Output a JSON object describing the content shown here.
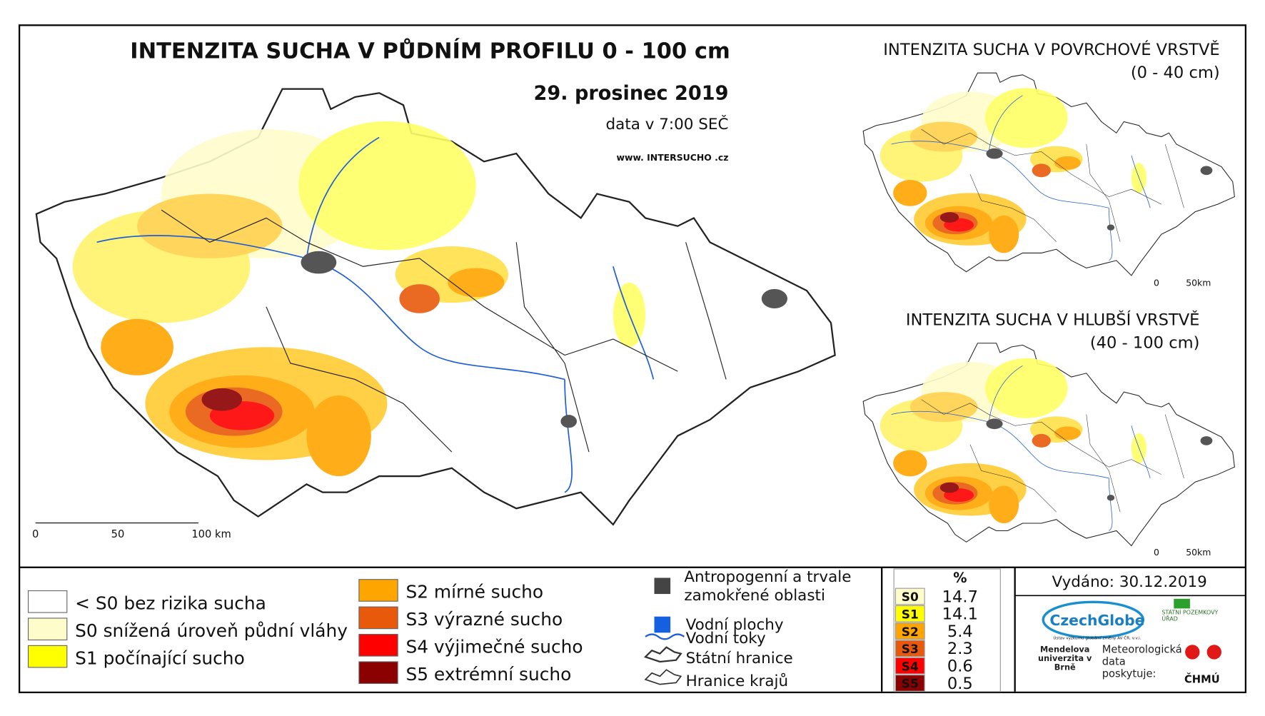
{
  "main_map": {
    "title": "INTENZITA SUCHA V PŮDNÍM PROFILU 0 - 100 cm",
    "date": "29. prosinec 2019",
    "data_time": "data v 7:00 SEČ",
    "website": "www. INTERSUCHO .cz",
    "scale": [
      "0",
      "50",
      "100 km"
    ]
  },
  "inset_maps": [
    {
      "title": "INTENZITA SUCHA V POVRCHOVÉ VRSTVĚ",
      "depth": "(0 - 40 cm)",
      "scale": [
        "0",
        "50km"
      ]
    },
    {
      "title": "INTENZITA SUCHA V HLUBŠÍ VRSTVĚ",
      "depth": "(40 - 100 cm)",
      "scale": [
        "0",
        "50km"
      ]
    }
  ],
  "legend": {
    "drought_classes": [
      {
        "label": "< S0 bez rizika sucha",
        "color": "#ffffff"
      },
      {
        "label": "S0 snížená úroveň půdní vláhy",
        "color": "#fffccc"
      },
      {
        "label": "S1 počínající sucho",
        "color": "#ffff00"
      },
      {
        "label": "S2 mírné sucho",
        "color": "#ffa500"
      },
      {
        "label": "S3 výrazné sucho",
        "color": "#e8590c"
      },
      {
        "label": "S4 výjimečné sucho",
        "color": "#ff0000"
      },
      {
        "label": "S5 extrémní sucho",
        "color": "#8b0000"
      }
    ],
    "map_symbols": [
      {
        "label": "Antropogenní a trvale zamokřené oblasti",
        "color": "#444444"
      },
      {
        "label": "Vodní plochy",
        "color": "#1560e0"
      },
      {
        "label": "Vodní toky",
        "color": "#1f5fd6"
      },
      {
        "label": "Státní hranice",
        "color": "#333333"
      },
      {
        "label": "Hranice krajů",
        "color": "#333333"
      }
    ]
  },
  "stats": {
    "header": "%",
    "rows": [
      {
        "class": "S0",
        "percent": 14.7,
        "color": "#fffccc"
      },
      {
        "class": "S1",
        "percent": 14.1,
        "color": "#ffff00"
      },
      {
        "class": "S2",
        "percent": 5.4,
        "color": "#ffa500"
      },
      {
        "class": "S3",
        "percent": 2.3,
        "color": "#e8590c"
      },
      {
        "class": "S4",
        "percent": 0.6,
        "color": "#ff0000"
      },
      {
        "class": "S5",
        "percent": 0.5,
        "color": "#8b0000"
      }
    ]
  },
  "issued": "Vydáno: 30.12.2019",
  "credits": {
    "czechglobe": "CzechGlobe",
    "czechglobe_sub": "Ústav výzkumu globální změny AV ČR, v.v.i.",
    "spu": "STÁTNÍ POZEMKOVÝ ÚŘAD",
    "mendelu": "Mendelova univerzita v Brně",
    "meteo": "Meteorologická data poskytuje:",
    "chmu": "ČHMÚ"
  }
}
